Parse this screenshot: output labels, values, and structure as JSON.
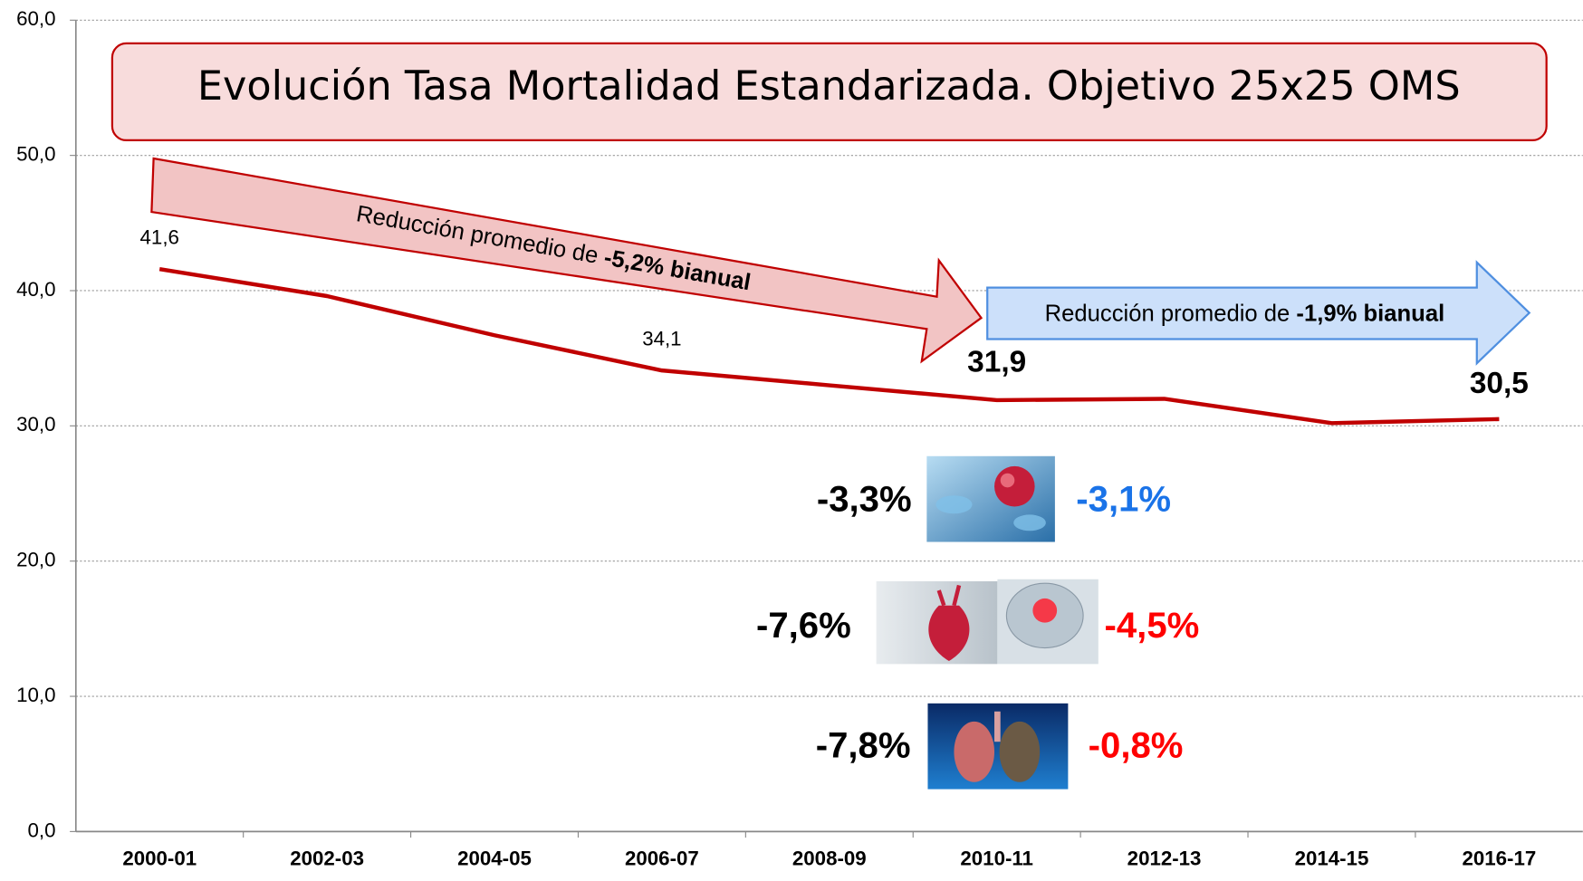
{
  "chart_data": {
    "type": "line",
    "title": "Evolución Tasa Mortalidad Estandarizada. Objetivo 25x25 OMS",
    "categories": [
      "2000-01",
      "2002-03",
      "2004-05",
      "2006-07",
      "2008-09",
      "2010-11",
      "2012-13",
      "2014-15",
      "2016-17"
    ],
    "values": [
      41.6,
      39.6,
      36.7,
      34.1,
      33.0,
      31.9,
      32.0,
      30.2,
      30.5
    ],
    "value_labels": [
      "41,6",
      null,
      null,
      "34,1",
      null,
      "31,9",
      null,
      null,
      "30,5"
    ],
    "color": "#c00000",
    "ylim": [
      0,
      60
    ],
    "yticks": [
      {
        "value": 0,
        "label": "0,0"
      },
      {
        "value": 10,
        "label": "10,0"
      },
      {
        "value": 20,
        "label": "20,0"
      },
      {
        "value": 30,
        "label": "30,0"
      },
      {
        "value": 40,
        "label": "40,0"
      },
      {
        "value": 50,
        "label": "50,0"
      },
      {
        "value": 60,
        "label": "60,0"
      }
    ],
    "grid": true,
    "annotations": {
      "arrows": [
        {
          "text": "Reducción  promedio de ",
          "highlight": "-5,2% bianual",
          "color": "#c00000"
        },
        {
          "text": "Reducción  promedio de ",
          "highlight": "-1,9% bianual",
          "color": "#4f8fe0"
        }
      ],
      "stats": [
        {
          "left": "-3,3%",
          "right": "-3,1%",
          "right_color": "#1a73e8"
        },
        {
          "left": "-7,6%",
          "right": "-4,5%",
          "right_color": "#ff0000"
        },
        {
          "left": "-7,8%",
          "right": "-0,8%",
          "right_color": "#ff0000"
        }
      ]
    }
  }
}
